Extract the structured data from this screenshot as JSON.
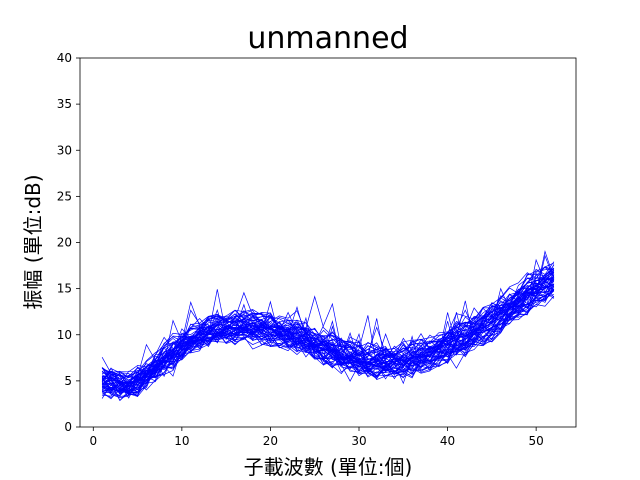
{
  "chart_data": {
    "type": "line",
    "title": "unmanned",
    "xlabel": "子載波數 (單位:個)",
    "ylabel": "振幅 (單位:dB)",
    "xlim": [
      -1.5,
      54.5
    ],
    "ylim": [
      0,
      40
    ],
    "xticks": [
      0,
      10,
      20,
      30,
      40,
      50
    ],
    "yticks": [
      0,
      5,
      10,
      15,
      20,
      25,
      30,
      35,
      40
    ],
    "grid": false,
    "line_color": "#0000ff",
    "series_count": 60,
    "x": [
      1,
      2,
      3,
      4,
      5,
      6,
      7,
      8,
      9,
      10,
      11,
      12,
      13,
      14,
      15,
      16,
      17,
      18,
      19,
      20,
      21,
      22,
      23,
      24,
      25,
      26,
      27,
      28,
      29,
      30,
      31,
      32,
      33,
      34,
      35,
      36,
      37,
      38,
      39,
      40,
      41,
      42,
      43,
      44,
      45,
      46,
      47,
      48,
      49,
      50,
      51,
      52
    ],
    "mean_profile": [
      5.0,
      4.8,
      4.6,
      4.6,
      5.0,
      5.6,
      6.4,
      7.3,
      8.1,
      8.8,
      9.4,
      9.9,
      10.3,
      10.6,
      10.8,
      10.9,
      11.0,
      10.9,
      10.8,
      10.6,
      10.4,
      10.1,
      9.8,
      9.5,
      9.1,
      8.7,
      8.3,
      7.9,
      7.6,
      7.4,
      7.2,
      7.1,
      7.1,
      7.2,
      7.3,
      7.5,
      7.8,
      8.1,
      8.5,
      8.9,
      9.4,
      9.9,
      10.4,
      11.0,
      11.6,
      12.3,
      13.0,
      13.7,
      14.4,
      15.0,
      15.5,
      16.0
    ],
    "spread": 1.6,
    "noise_amplitude": 0.9,
    "extremes": {
      "min": 1.0,
      "max": 23.2
    }
  }
}
